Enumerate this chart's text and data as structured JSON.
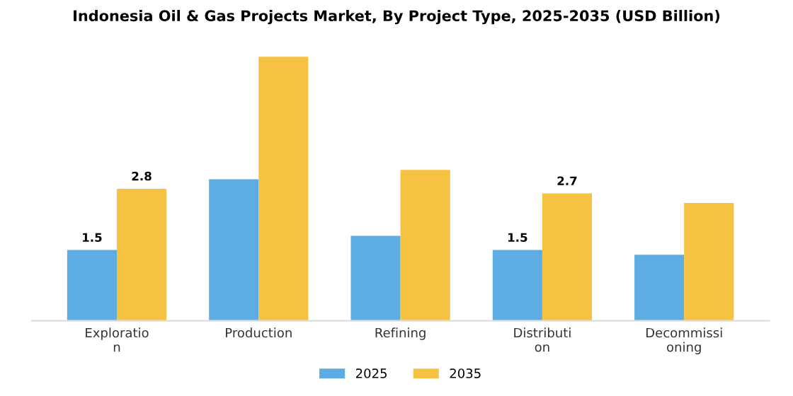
{
  "chart_data": {
    "type": "bar",
    "title": "Indonesia Oil & Gas Projects Market, By Project Type, 2025-2035 (USD Billion)",
    "categories": [
      "Exploration",
      "Production",
      "Refining",
      "Distribution",
      "Decommissioning"
    ],
    "series": [
      {
        "name": "2025",
        "color": "#5dade2",
        "values": [
          1.5,
          3.0,
          1.8,
          1.5,
          1.4
        ],
        "value_labels": [
          "1.5",
          null,
          null,
          "1.5",
          null
        ]
      },
      {
        "name": "2035",
        "color": "#f5c242",
        "values": [
          2.8,
          5.6,
          3.2,
          2.7,
          2.5
        ],
        "value_labels": [
          "2.8",
          null,
          null,
          "2.7",
          null
        ]
      }
    ],
    "tick_labels": "x",
    "grid": false,
    "legend": "bottom"
  }
}
